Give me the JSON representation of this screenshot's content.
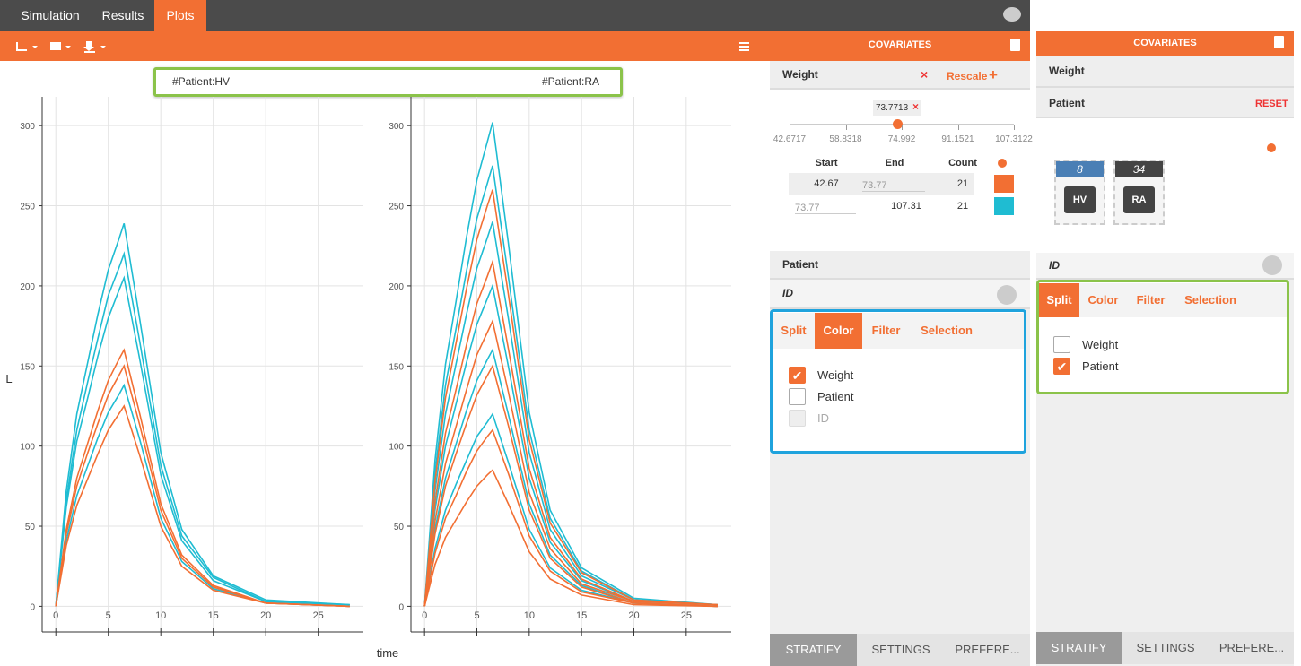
{
  "app": {
    "tabs": [
      "Simulation",
      "Results",
      "Plots"
    ],
    "active_tab": 2
  },
  "plot_axes": {
    "xlabel": "time",
    "ylabel": "L"
  },
  "chart_data": [
    {
      "type": "line",
      "title": "#Patient:HV",
      "x": [
        0,
        1,
        2,
        3,
        4,
        5,
        6,
        6.5,
        8,
        10,
        12,
        15,
        20,
        28
      ],
      "series": [
        {
          "color": "#1fbcd2",
          "values": [
            0,
            72,
            120,
            151,
            182,
            210,
            229,
            239,
            179,
            96,
            48,
            19,
            4,
            1
          ]
        },
        {
          "color": "#1fbcd2",
          "values": [
            0,
            66,
            110,
            139,
            167,
            194,
            211,
            220,
            165,
            88,
            44,
            18,
            3,
            1
          ]
        },
        {
          "color": "#1fbcd2",
          "values": [
            0,
            62,
            103,
            129,
            156,
            180,
            197,
            205,
            154,
            82,
            41,
            16,
            3,
            1
          ]
        },
        {
          "color": "#1fbcd2",
          "values": [
            0,
            41,
            69,
            87,
            105,
            121,
            132,
            138,
            104,
            55,
            28,
            11,
            2,
            0
          ]
        },
        {
          "color": "#f26f33",
          "values": [
            0,
            48,
            80,
            101,
            122,
            141,
            154,
            160,
            120,
            64,
            32,
            13,
            2,
            0
          ]
        },
        {
          "color": "#f26f33",
          "values": [
            0,
            45,
            75,
            95,
            114,
            132,
            144,
            150,
            113,
            60,
            30,
            12,
            2,
            0
          ]
        },
        {
          "color": "#f26f33",
          "values": [
            0,
            38,
            63,
            79,
            95,
            110,
            120,
            125,
            94,
            50,
            25,
            10,
            2,
            0
          ]
        }
      ],
      "xlim": [
        -1.3,
        29.3
      ],
      "ylim": [
        -16,
        318
      ],
      "xticks": [
        0,
        5,
        10,
        15,
        20,
        25
      ],
      "yticks": [
        0,
        50,
        100,
        150,
        200,
        250,
        300
      ],
      "grid": true
    },
    {
      "type": "line",
      "title": "#Patient:RA",
      "x": [
        0,
        1,
        2,
        3,
        4,
        5,
        6,
        6.5,
        8,
        10,
        12,
        15,
        20,
        28
      ],
      "series": [
        {
          "color": "#1fbcd2",
          "values": [
            0,
            91,
            151,
            190,
            230,
            266,
            290,
            302,
            227,
            121,
            60,
            24,
            5,
            1
          ]
        },
        {
          "color": "#1fbcd2",
          "values": [
            0,
            83,
            138,
            173,
            209,
            242,
            264,
            275,
            206,
            110,
            55,
            22,
            4,
            1
          ]
        },
        {
          "color": "#1fbcd2",
          "values": [
            0,
            72,
            120,
            151,
            182,
            211,
            230,
            240,
            180,
            96,
            48,
            19,
            4,
            1
          ]
        },
        {
          "color": "#1fbcd2",
          "values": [
            0,
            60,
            100,
            126,
            152,
            176,
            192,
            200,
            150,
            80,
            40,
            16,
            3,
            1
          ]
        },
        {
          "color": "#1fbcd2",
          "values": [
            0,
            48,
            80,
            101,
            122,
            141,
            154,
            160,
            120,
            64,
            32,
            13,
            2,
            0
          ]
        },
        {
          "color": "#1fbcd2",
          "values": [
            0,
            36,
            60,
            76,
            91,
            106,
            115,
            120,
            90,
            48,
            24,
            10,
            2,
            0
          ]
        },
        {
          "color": "#f26f33",
          "values": [
            0,
            78,
            130,
            164,
            198,
            229,
            250,
            260,
            195,
            104,
            52,
            21,
            4,
            1
          ]
        },
        {
          "color": "#f26f33",
          "values": [
            0,
            65,
            108,
            135,
            163,
            189,
            206,
            215,
            161,
            86,
            43,
            17,
            3,
            1
          ]
        },
        {
          "color": "#f26f33",
          "values": [
            0,
            53,
            89,
            112,
            135,
            157,
            171,
            178,
            134,
            71,
            36,
            14,
            3,
            1
          ]
        },
        {
          "color": "#f26f33",
          "values": [
            0,
            45,
            75,
            95,
            114,
            132,
            144,
            150,
            113,
            60,
            30,
            12,
            2,
            0
          ]
        },
        {
          "color": "#f26f33",
          "values": [
            0,
            33,
            55,
            69,
            84,
            97,
            106,
            110,
            83,
            44,
            22,
            9,
            2,
            0
          ]
        },
        {
          "color": "#f26f33",
          "values": [
            0,
            26,
            43,
            54,
            65,
            75,
            82,
            85,
            64,
            34,
            17,
            7,
            1,
            0
          ]
        }
      ],
      "xlim": [
        -1.3,
        29.3
      ],
      "ylim": [
        -16,
        318
      ],
      "xticks": [
        0,
        5,
        10,
        15,
        20,
        25
      ],
      "yticks": [
        0,
        50,
        100,
        150,
        200,
        250,
        300
      ],
      "grid": true
    }
  ],
  "panel1": {
    "header": "COVARIATES",
    "weight": "Weight",
    "rescale": "Rescale",
    "slider_value": "73.7713",
    "slider_ticks": [
      "42.6717",
      "58.8318",
      "74.992",
      "91.1521",
      "107.3122"
    ],
    "table_headers": [
      "Start",
      "End",
      "Count"
    ],
    "rows": [
      {
        "start": "42.67",
        "end": "73.77",
        "count": "21",
        "color": "#f26f33"
      },
      {
        "start": "73.77",
        "end": "107.31",
        "count": "21",
        "color": "#1fbcd2"
      }
    ],
    "patient": "Patient",
    "id": "ID",
    "subtabs": [
      "Split",
      "Color",
      "Filter",
      "Selection"
    ],
    "active_subtab": 1,
    "checkboxes": [
      {
        "label": "Weight",
        "checked": true
      },
      {
        "label": "Patient",
        "checked": false
      },
      {
        "label": "ID",
        "checked": false,
        "disabled": true
      }
    ],
    "bottom_tabs": [
      "STRATIFY",
      "SETTINGS",
      "PREFERE..."
    ]
  },
  "panel2": {
    "header": "COVARIATES",
    "weight": "Weight",
    "patient": "Patient",
    "reset": "RESET",
    "chips": [
      {
        "count": "8",
        "label": "HV",
        "color": "#4a7fb5"
      },
      {
        "count": "34",
        "label": "RA",
        "color": "#444444"
      }
    ],
    "id": "ID",
    "subtabs": [
      "Split",
      "Color",
      "Filter",
      "Selection"
    ],
    "active_subtab": 0,
    "checkboxes": [
      {
        "label": "Weight",
        "checked": false
      },
      {
        "label": "Patient",
        "checked": true
      }
    ],
    "bottom_tabs": [
      "STRATIFY",
      "SETTINGS",
      "PREFERE..."
    ]
  }
}
